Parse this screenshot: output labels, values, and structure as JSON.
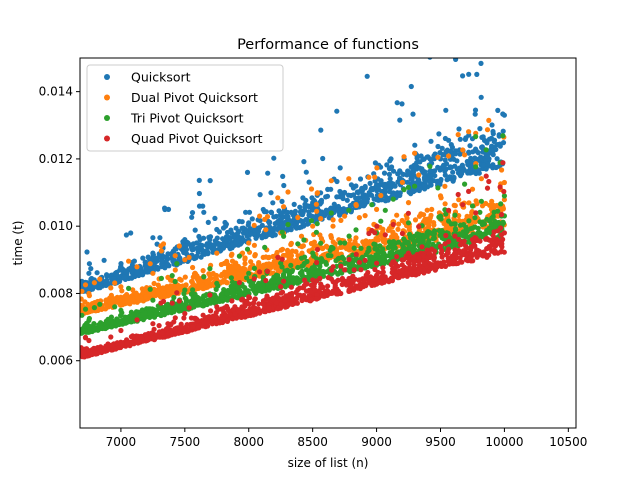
{
  "chart_data": {
    "type": "scatter",
    "title": "Performance of functions",
    "xlabel": "size of list (n)",
    "ylabel": "time (t)",
    "xlim": [
      6680,
      10560
    ],
    "ylim": [
      0.004,
      0.015
    ],
    "xticks": [
      7000,
      7500,
      8000,
      8500,
      9000,
      9500,
      10000,
      10500
    ],
    "xtick_labels": [
      "7000",
      "7500",
      "8000",
      "8500",
      "9000",
      "9500",
      "10000",
      "10500"
    ],
    "yticks": [
      0.006,
      0.008,
      0.01,
      0.012,
      0.014
    ],
    "ytick_labels": [
      "0.006",
      "0.008",
      "0.010",
      "0.012",
      "0.014"
    ],
    "grid": false,
    "legend_position": "top-left",
    "x_range_of_points": [
      6680,
      10000
    ],
    "series": [
      {
        "name": "Quicksort",
        "color": "#1f77b4",
        "trend_base": [
          [
            6700,
            0.008
          ],
          [
            10000,
            0.0118
          ]
        ],
        "spread_range": [
          0.0008,
          0.003
        ],
        "samples": [
          [
            6750,
            0.0086
          ],
          [
            7000,
            0.0088
          ],
          [
            7250,
            0.0092
          ],
          [
            7500,
            0.0096
          ],
          [
            7750,
            0.0099
          ],
          [
            8000,
            0.0101
          ],
          [
            8250,
            0.0104
          ],
          [
            8500,
            0.0107
          ],
          [
            8750,
            0.011
          ],
          [
            9000,
            0.0112
          ],
          [
            9250,
            0.0116
          ],
          [
            9500,
            0.012
          ],
          [
            9750,
            0.0126
          ],
          [
            10000,
            0.0133
          ]
        ]
      },
      {
        "name": "Dual Pivot Quicksort",
        "color": "#ff7f0e",
        "trend_base": [
          [
            6700,
            0.0074
          ],
          [
            10000,
            0.01
          ]
        ],
        "spread_range": [
          0.0006,
          0.0026
        ],
        "samples": [
          [
            6750,
            0.008
          ],
          [
            7000,
            0.0082
          ],
          [
            7250,
            0.0086
          ],
          [
            7500,
            0.009
          ],
          [
            7750,
            0.0092
          ],
          [
            8000,
            0.0095
          ],
          [
            8250,
            0.0098
          ],
          [
            8500,
            0.01
          ],
          [
            8750,
            0.0103
          ],
          [
            9000,
            0.0105
          ],
          [
            9250,
            0.0107
          ],
          [
            9500,
            0.0109
          ],
          [
            9750,
            0.0111
          ],
          [
            10000,
            0.0113
          ]
        ]
      },
      {
        "name": "Tri Pivot Quicksort",
        "color": "#2ca02c",
        "trend_base": [
          [
            6700,
            0.0068
          ],
          [
            10000,
            0.0097
          ]
        ],
        "spread_range": [
          0.0005,
          0.002
        ],
        "samples": [
          [
            6750,
            0.0072
          ],
          [
            7000,
            0.0075
          ],
          [
            7250,
            0.0078
          ],
          [
            7500,
            0.0081
          ],
          [
            7750,
            0.0083
          ],
          [
            8000,
            0.0086
          ],
          [
            8250,
            0.0089
          ],
          [
            8500,
            0.0092
          ],
          [
            8750,
            0.0095
          ],
          [
            9000,
            0.0098
          ],
          [
            9250,
            0.0101
          ],
          [
            9500,
            0.0103
          ],
          [
            9750,
            0.0106
          ],
          [
            10000,
            0.0109
          ]
        ]
      },
      {
        "name": "Quad Pivot Quicksort",
        "color": "#d62728",
        "trend_base": [
          [
            6700,
            0.0061
          ],
          [
            10000,
            0.0092
          ]
        ],
        "spread_range": [
          0.0004,
          0.0018
        ],
        "samples": [
          [
            6750,
            0.0066
          ],
          [
            7000,
            0.0069
          ],
          [
            7250,
            0.0071
          ],
          [
            7500,
            0.0074
          ],
          [
            7750,
            0.0076
          ],
          [
            8000,
            0.0079
          ],
          [
            8250,
            0.0082
          ],
          [
            8500,
            0.0084
          ],
          [
            8750,
            0.0087
          ],
          [
            9000,
            0.0089
          ],
          [
            9250,
            0.0092
          ],
          [
            9500,
            0.0094
          ],
          [
            9750,
            0.0096
          ],
          [
            10000,
            0.0098
          ]
        ]
      }
    ]
  }
}
